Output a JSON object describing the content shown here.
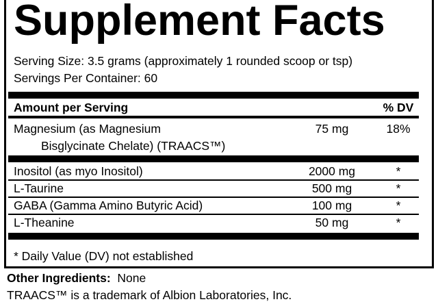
{
  "title": "Supplement Facts",
  "serving_size": "Serving Size:  3.5 grams (approximately 1 rounded scoop or tsp)",
  "servings_per_container": "Servings Per Container:  60",
  "header": {
    "amount": "Amount per Serving",
    "dv": "% DV"
  },
  "magnesium": {
    "line1": "Magnesium (as Magnesium",
    "line2": "Bisglycinate Chelate) (TRAACS™)",
    "amount": "75 mg",
    "dv": "18%"
  },
  "rows": [
    {
      "name": "Inositol (as myo Inositol)",
      "amount": "2000 mg",
      "dv": "*"
    },
    {
      "name": "L-Taurine",
      "amount": "500 mg",
      "dv": "*"
    },
    {
      "name": "GABA (Gamma Amino Butyric Acid)",
      "amount": "100 mg",
      "dv": "*"
    },
    {
      "name": "L-Theanine",
      "amount": "50 mg",
      "dv": "*"
    }
  ],
  "footnote": "* Daily Value (DV) not established",
  "other_ingredients": {
    "label": "Other Ingredients:",
    "value": "None"
  },
  "trademark": "TRAACS™ is a trademark of Albion Laboratories, Inc."
}
